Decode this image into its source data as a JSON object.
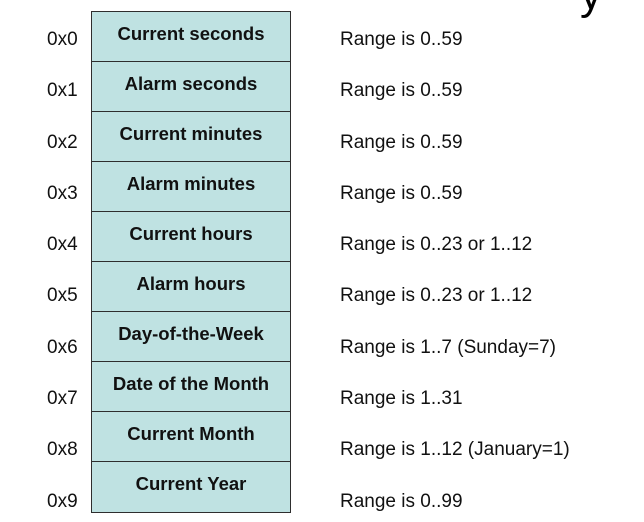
{
  "header": {
    "title_fragment": "y"
  },
  "registers": [
    {
      "address": "0x0",
      "name": "Current seconds",
      "range": "Range is 0..59"
    },
    {
      "address": "0x1",
      "name": "Alarm seconds",
      "range": "Range is 0..59"
    },
    {
      "address": "0x2",
      "name": "Current minutes",
      "range": "Range is 0..59"
    },
    {
      "address": "0x3",
      "name": "Alarm minutes",
      "range": "Range is 0..59"
    },
    {
      "address": "0x4",
      "name": "Current hours",
      "range": "Range is 0..23 or 1..12"
    },
    {
      "address": "0x5",
      "name": "Alarm hours",
      "range": "Range is 0..23 or 1..12"
    },
    {
      "address": "0x6",
      "name": "Day-of-the-Week",
      "range": "Range is 1..7 (Sunday=7)"
    },
    {
      "address": "0x7",
      "name": "Date of the Month",
      "range": "Range is 1..31"
    },
    {
      "address": "0x8",
      "name": "Current Month",
      "range": "Range is 1..12 (January=1)"
    },
    {
      "address": "0x9",
      "name": "Current Year",
      "range": "Range is 0..99"
    }
  ],
  "colors": {
    "cell_fill": "#bfe2e2",
    "border": "#2e2e2e",
    "text": "#111111"
  }
}
